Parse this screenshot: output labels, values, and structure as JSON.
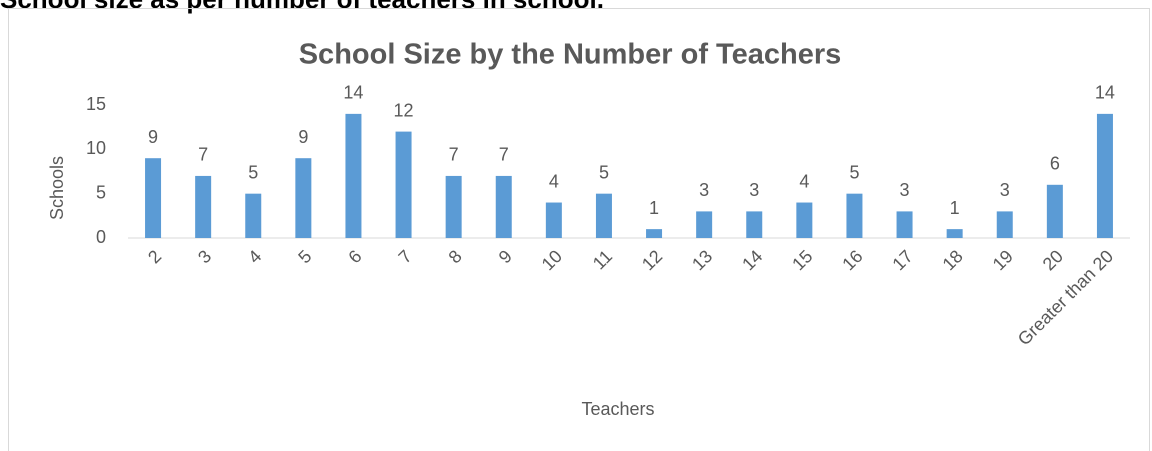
{
  "heading": "School size as per number of teachers in school.",
  "chart_data": {
    "type": "bar",
    "title": "School Size by the Number of Teachers",
    "x_label": "Teachers",
    "y_label": "Schools",
    "categories": [
      "2",
      "3",
      "4",
      "5",
      "6",
      "7",
      "8",
      "9",
      "10",
      "11",
      "12",
      "13",
      "14",
      "15",
      "16",
      "17",
      "18",
      "19",
      "20",
      "Greater than 20"
    ],
    "values": [
      9,
      7,
      5,
      9,
      14,
      12,
      7,
      7,
      4,
      5,
      1,
      3,
      3,
      4,
      5,
      3,
      1,
      3,
      6,
      14
    ],
    "color": "#5b9bd5",
    "ylim": [
      0,
      15
    ],
    "yticks": [
      0,
      5,
      10,
      15
    ],
    "grid": false
  }
}
